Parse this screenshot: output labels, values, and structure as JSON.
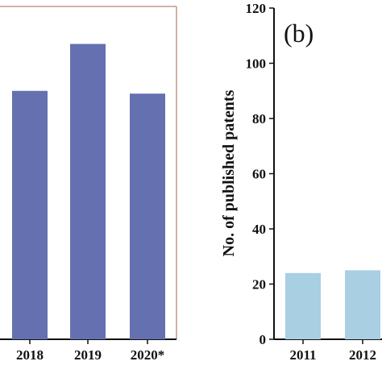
{
  "chart_data": [
    {
      "type": "bar",
      "categories": [
        "2018",
        "2019",
        "2020*"
      ],
      "values": [
        90,
        107,
        89
      ],
      "title": "",
      "xlabel": "",
      "ylabel": "",
      "ylim": [
        0,
        120
      ],
      "grid": false,
      "bar_color": "#6570b0",
      "frame_color": "#c49a86"
    },
    {
      "type": "bar",
      "panel_label": "(b)",
      "categories": [
        "2011",
        "2012"
      ],
      "values": [
        24,
        25
      ],
      "title": "",
      "xlabel": "",
      "ylabel": "No. of published patents",
      "ylim": [
        0,
        120
      ],
      "yticks": [
        "0",
        "20",
        "40",
        "60",
        "80",
        "100",
        "120"
      ],
      "grid": false,
      "bar_color": "#a9cfe2",
      "axis_color": "#111111"
    }
  ]
}
